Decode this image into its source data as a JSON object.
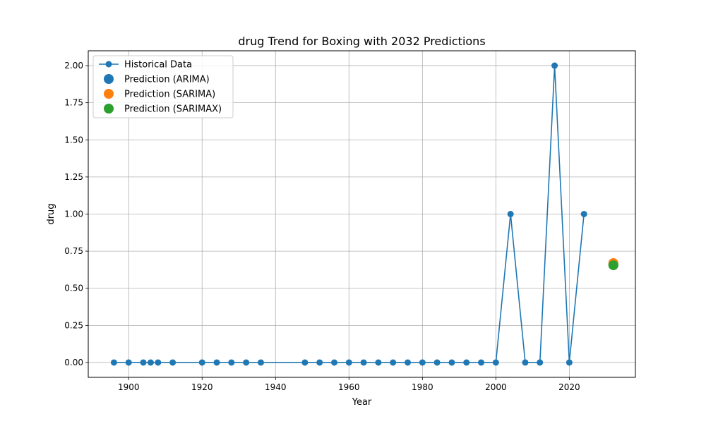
{
  "chart_data": {
    "type": "line",
    "title": "drug Trend for Boxing with 2032 Predictions",
    "xlabel": "Year",
    "ylabel": "drug",
    "xlim": [
      1889,
      2038
    ],
    "ylim": [
      -0.1,
      2.1
    ],
    "xticks": [
      1900,
      1920,
      1940,
      1960,
      1980,
      2000,
      2020
    ],
    "yticks": [
      0.0,
      0.25,
      0.5,
      0.75,
      1.0,
      1.25,
      1.5,
      1.75,
      2.0
    ],
    "ytick_labels": [
      "0.00",
      "0.25",
      "0.50",
      "0.75",
      "1.00",
      "1.25",
      "1.50",
      "1.75",
      "2.00"
    ],
    "grid": true,
    "legend_position": "top-left",
    "series": [
      {
        "name": "Historical Data",
        "kind": "line-marker",
        "color": "#1f77b4",
        "x": [
          1896,
          1900,
          1904,
          1906,
          1908,
          1912,
          1920,
          1924,
          1928,
          1932,
          1936,
          1948,
          1952,
          1956,
          1960,
          1964,
          1968,
          1972,
          1976,
          1980,
          1984,
          1988,
          1992,
          1996,
          2000,
          2004,
          2008,
          2012,
          2016,
          2020,
          2024
        ],
        "y": [
          0,
          0,
          0,
          0,
          0,
          0,
          0,
          0,
          0,
          0,
          0,
          0,
          0,
          0,
          0,
          0,
          0,
          0,
          0,
          0,
          0,
          0,
          0,
          0,
          0,
          1,
          0,
          0,
          2,
          0,
          1
        ]
      },
      {
        "name": "Prediction (ARIMA)",
        "kind": "point",
        "color": "#1f77b4",
        "x": [
          2032
        ],
        "y": [
          0.66
        ]
      },
      {
        "name": "Prediction (SARIMA)",
        "kind": "point",
        "color": "#ff7f0e",
        "x": [
          2032
        ],
        "y": [
          0.67
        ]
      },
      {
        "name": "Prediction (SARIMAX)",
        "kind": "point",
        "color": "#2ca02c",
        "x": [
          2032
        ],
        "y": [
          0.655
        ]
      }
    ]
  }
}
